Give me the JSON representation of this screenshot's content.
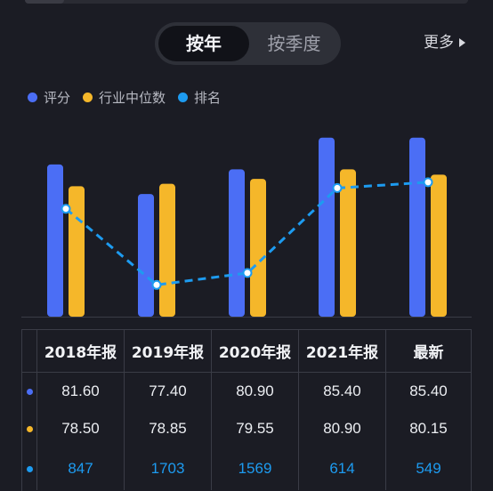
{
  "tabs": {
    "active": "按年",
    "inactive": "按季度"
  },
  "more_label": "更多",
  "legend": [
    {
      "label": "评分",
      "color": "#4b6ef5"
    },
    {
      "label": "行业中位数",
      "color": "#f5b72a"
    },
    {
      "label": "排名",
      "color": "#1d9bf0"
    }
  ],
  "colors": {
    "score": "#4b6ef5",
    "median": "#f5b72a",
    "rank": "#1d9bf0",
    "background": "#1b1c24"
  },
  "chart_data": {
    "type": "bar",
    "categories": [
      "2018年报",
      "2019年报",
      "2020年报",
      "2021年报",
      "最新"
    ],
    "series": [
      {
        "name": "评分",
        "type": "bar",
        "values": [
          81.6,
          77.4,
          80.9,
          85.4,
          85.4
        ]
      },
      {
        "name": "行业中位数",
        "type": "bar",
        "values": [
          78.5,
          78.85,
          79.55,
          80.9,
          80.15
        ]
      },
      {
        "name": "排名",
        "type": "line",
        "style": "dashed",
        "values": [
          847,
          1703,
          1569,
          614,
          549
        ]
      }
    ],
    "legend_position": "top-left",
    "grid": false
  },
  "table": {
    "headers": [
      "2018年报",
      "2019年报",
      "2020年报",
      "2021年报",
      "最新"
    ],
    "rows": [
      {
        "series": "评分",
        "dot_color": "#4b6ef5",
        "cells": [
          "81.60",
          "77.40",
          "80.90",
          "85.40",
          "85.40"
        ]
      },
      {
        "series": "行业中位数",
        "dot_color": "#f5b72a",
        "cells": [
          "78.50",
          "78.85",
          "79.55",
          "80.90",
          "80.15"
        ]
      },
      {
        "series": "排名",
        "dot_color": "#1d9bf0",
        "cells": [
          "847",
          "1703",
          "1569",
          "614",
          "549"
        ]
      }
    ]
  }
}
